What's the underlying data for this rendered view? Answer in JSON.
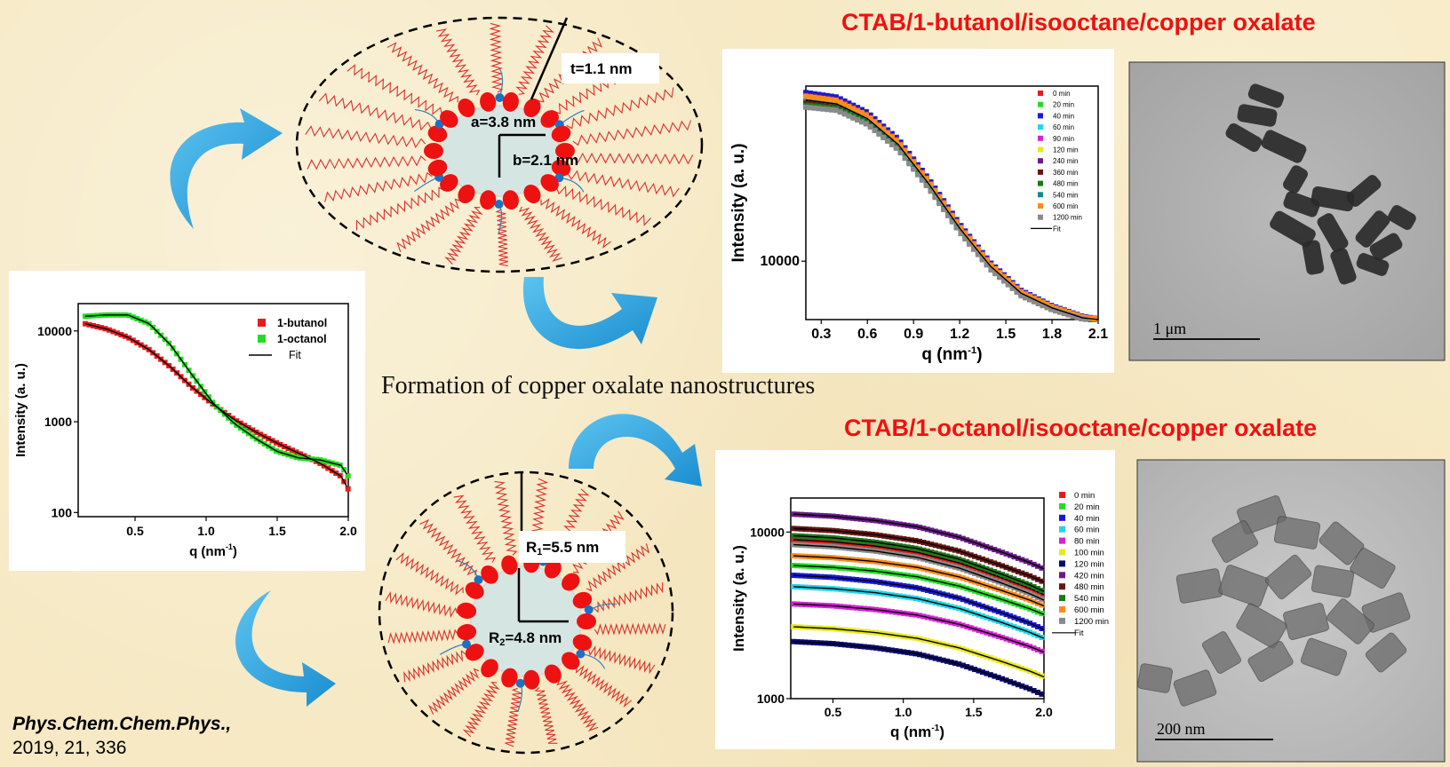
{
  "figure": {
    "caption": "Formation of copper oxalate nanostructures",
    "reference": {
      "journal": "Phys.Chem.Chem.Phys.,",
      "citation": "2019, 21, 336"
    },
    "top_system_title": "CTAB/1-butanol/isooctane/copper oxalate",
    "bottom_system_title": "CTAB/1-octanol/isooctane/copper oxalate",
    "top_micelle": {
      "t_label": "t=1.1 nm",
      "a_label": "a=3.8 nm",
      "b_label": "b=2.1 nm"
    },
    "bottom_micelle": {
      "r1_label": "R1=5.5 nm",
      "r2_label": "R2=4.8 nm"
    },
    "tem_top": {
      "scale_label": "1 μm"
    },
    "tem_bottom": {
      "scale_label": "200 nm"
    },
    "colors": {
      "title": "#ee1111",
      "arrow": "#29a3e0",
      "headgroup": "#ee1111",
      "counterion": "#1f6fc4",
      "tail": "#d9302b"
    }
  },
  "chart_data": [
    {
      "id": "left",
      "type": "scatter",
      "xlabel": "q (nm",
      "xlabel_sup": "-1",
      "xlabel_end": ")",
      "ylabel": "Intensity (a. u.)",
      "log_y": true,
      "xlim": [
        0.1,
        2.0
      ],
      "ylim": [
        90,
        20000
      ],
      "xticks": [
        0.5,
        1.0,
        1.5,
        2.0
      ],
      "xtick_labels": [
        "0.5",
        "1.0",
        "1.5",
        "2.0"
      ],
      "yticks": [
        100,
        1000,
        10000
      ],
      "ytick_labels": [
        "100",
        "1000",
        "10000"
      ],
      "legend": [
        "1-butanol",
        "1-octanol",
        "Fit"
      ],
      "series": [
        {
          "name": "1-butanol",
          "color": "#e51c1c",
          "x": [
            0.15,
            0.3,
            0.45,
            0.6,
            0.75,
            0.9,
            1.05,
            1.2,
            1.35,
            1.5,
            1.65,
            1.8,
            1.95,
            2.0
          ],
          "y": [
            12000,
            10500,
            8500,
            6200,
            4000,
            2400,
            1550,
            1050,
            770,
            580,
            450,
            350,
            250,
            180
          ]
        },
        {
          "name": "1-octanol",
          "color": "#22dd22",
          "x": [
            0.15,
            0.3,
            0.45,
            0.6,
            0.75,
            0.9,
            1.05,
            1.2,
            1.35,
            1.5,
            1.65,
            1.8,
            1.95,
            2.0
          ],
          "y": [
            14500,
            15000,
            15000,
            12000,
            7000,
            3300,
            1600,
            950,
            650,
            470,
            400,
            380,
            330,
            250
          ]
        }
      ]
    },
    {
      "id": "top",
      "type": "scatter",
      "xlabel": "q (nm",
      "xlabel_sup": "-1",
      "xlabel_end": ")",
      "ylabel": "Intensity (a. u.)",
      "log_y": true,
      "xlim": [
        0.2,
        2.1
      ],
      "ylim": [
        5500,
        60000
      ],
      "xticks": [
        0.3,
        0.6,
        0.9,
        1.2,
        1.5,
        1.8,
        2.1
      ],
      "xtick_labels": [
        "0.3",
        "0.6",
        "0.9",
        "1.2",
        "1.5",
        "1.8",
        "2.1"
      ],
      "yticks": [
        10000
      ],
      "ytick_labels": [
        "10000"
      ],
      "legend": [
        "0 min",
        "20 min",
        "40 min",
        "60 min",
        "90 min",
        "120 min",
        "240 min",
        "360 min",
        "480 min",
        "540 min",
        "600 min",
        "1200 min",
        "Fit"
      ],
      "series_colors": [
        "#e51c1c",
        "#22dd22",
        "#1a1ad6",
        "#22d6e8",
        "#d622d6",
        "#e8e822",
        "#6a1a8a",
        "#6a1414",
        "#1a7a1a",
        "#148a8a",
        "#ff8c1a",
        "#8a8a8a"
      ],
      "base_x": [
        0.2,
        0.4,
        0.6,
        0.8,
        1.0,
        1.2,
        1.4,
        1.6,
        1.8,
        2.0,
        2.1
      ],
      "base_y": [
        52000,
        50000,
        43000,
        33000,
        22000,
        14000,
        9500,
        7200,
        6200,
        5600,
        5500
      ]
    },
    {
      "id": "bottom",
      "type": "scatter",
      "xlabel": "q (nm",
      "xlabel_sup": "-1",
      "xlabel_end": ")",
      "ylabel": "Intensity (a. u.)",
      "log_y": true,
      "xlim": [
        0.2,
        2.0
      ],
      "ylim": [
        1000,
        16000
      ],
      "xticks": [
        0.5,
        1.0,
        1.5,
        2.0
      ],
      "xtick_labels": [
        "0.5",
        "1.0",
        "1.5",
        "2.0"
      ],
      "yticks": [
        1000,
        10000
      ],
      "ytick_labels": [
        "1000",
        "10000"
      ],
      "legend": [
        "0 min",
        "20 min",
        "40 min",
        "60 min",
        "80 min",
        "100 min",
        "120 min",
        "420 min",
        "480 min",
        "540 min",
        "600 min",
        "1200 min",
        "Fit"
      ],
      "series": [
        {
          "name": "0 min",
          "color": "#e51c1c",
          "y0": 9000,
          "y1": 4200
        },
        {
          "name": "20 min",
          "color": "#22dd22",
          "y0": 6300,
          "y1": 3200
        },
        {
          "name": "40 min",
          "color": "#1a1ad6",
          "y0": 5500,
          "y1": 2600
        },
        {
          "name": "60 min",
          "color": "#22d6e8",
          "y0": 4700,
          "y1": 2300
        },
        {
          "name": "80 min",
          "color": "#d622d6",
          "y0": 3700,
          "y1": 1900
        },
        {
          "name": "100 min",
          "color": "#e8e822",
          "y0": 2700,
          "y1": 1350
        },
        {
          "name": "120 min",
          "color": "#0a0a70",
          "y0": 2200,
          "y1": 1050
        },
        {
          "name": "420 min",
          "color": "#6a1a8a",
          "y0": 12800,
          "y1": 6000
        },
        {
          "name": "480 min",
          "color": "#6a1414",
          "y0": 10500,
          "y1": 5000
        },
        {
          "name": "540 min",
          "color": "#1a7a1a",
          "y0": 9500,
          "y1": 4400
        },
        {
          "name": "600 min",
          "color": "#ff8c1a",
          "y0": 7200,
          "y1": 3600
        },
        {
          "name": "1200 min",
          "color": "#8a8a8a",
          "y0": 8400,
          "y1": 3900
        }
      ]
    }
  ]
}
